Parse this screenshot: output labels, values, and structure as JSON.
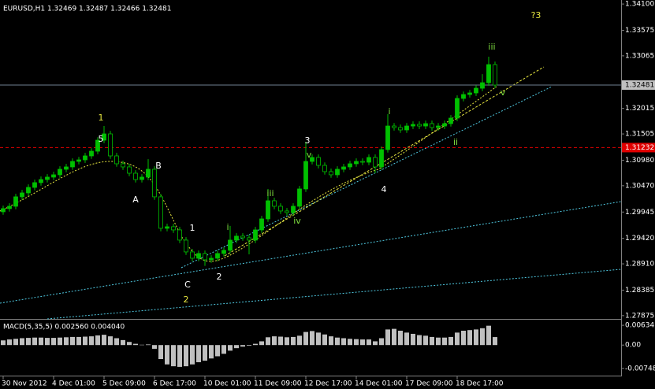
{
  "chart_data": [
    {
      "type": "candlestick",
      "title": "EURUSD,H1  1.32469 1.32487 1.32466 1.32481",
      "categories": [
        "30 Nov 2012",
        null,
        null,
        null,
        null,
        null,
        null,
        null,
        "4 Dec 01:00",
        null,
        null,
        null,
        null,
        null,
        null,
        null,
        "5 Dec 09:00",
        null,
        null,
        null,
        null,
        null,
        null,
        null,
        "6 Dec 17:00",
        null,
        null,
        null,
        null,
        null,
        null,
        null,
        "10 Dec 01:00",
        null,
        null,
        null,
        null,
        null,
        null,
        null,
        "11 Dec 09:00",
        null,
        null,
        null,
        null,
        null,
        null,
        null,
        "12 Dec 17:00",
        null,
        null,
        null,
        null,
        null,
        null,
        null,
        "14 Dec 01:00",
        null,
        null,
        null,
        null,
        null,
        null,
        null,
        "17 Dec 09:00",
        null,
        null,
        null,
        null,
        null,
        null,
        null,
        "18 Dec 17:00",
        null,
        null,
        null,
        null,
        null,
        null
      ],
      "open": [
        1.2995,
        1.30013,
        1.3006,
        1.30249,
        1.30327,
        1.30437,
        1.30532,
        1.30594,
        1.30642,
        1.30689,
        1.30799,
        1.30846,
        1.30956,
        1.30987,
        1.31066,
        1.3116,
        1.3138,
        1.31506,
        1.31066,
        1.30909,
        1.30846,
        1.3072,
        1.30594,
        1.30642,
        1.30799,
        1.30249,
        1.2962,
        1.29651,
        1.29588,
        1.29384,
        1.29148,
        1.29022,
        1.29117,
        1.28991,
        1.29022,
        1.29117,
        1.2918,
        1.29384,
        1.29463,
        1.29431,
        1.29384,
        1.29588,
        1.29808,
        1.3017,
        1.3006,
        1.29966,
        1.29934,
        1.3006,
        1.30406,
        1.30956,
        1.31035,
        1.30877,
        1.30752,
        1.30689,
        1.30799,
        1.30846,
        1.30909,
        1.30956,
        1.3094,
        1.31035,
        1.30846,
        1.31192,
        1.31663,
        1.31632,
        1.31585,
        1.31663,
        1.31695,
        1.31663,
        1.31711,
        1.31632,
        1.31663,
        1.31711,
        1.31821,
        1.32214,
        1.32292,
        1.32324,
        1.32418,
        1.32528,
        1.3289
      ],
      "high": [
        1.30073,
        1.3012,
        1.30309,
        1.30387,
        1.30497,
        1.30592,
        1.30654,
        1.30702,
        1.30749,
        1.30859,
        1.30906,
        1.31016,
        1.31047,
        1.31126,
        1.3122,
        1.3144,
        1.31663,
        1.31566,
        1.31126,
        1.30969,
        1.30906,
        1.3078,
        1.30702,
        1.31,
        1.30859,
        1.30309,
        1.29711,
        1.29711,
        1.29648,
        1.29444,
        1.29208,
        1.29177,
        1.29177,
        1.29082,
        1.29177,
        1.2924,
        1.29667,
        1.29523,
        1.29523,
        1.29491,
        1.29648,
        1.29868,
        1.30406,
        1.3023,
        1.3012,
        1.30026,
        1.3012,
        1.30466,
        1.31349,
        1.31095,
        1.31095,
        1.30937,
        1.30812,
        1.30859,
        1.30906,
        1.30969,
        1.31016,
        1.31016,
        1.31095,
        1.31095,
        1.31252,
        1.319,
        1.31723,
        1.31692,
        1.31723,
        1.31755,
        1.31755,
        1.31771,
        1.31771,
        1.31723,
        1.31771,
        1.31881,
        1.32274,
        1.32352,
        1.32384,
        1.32478,
        1.327,
        1.33047,
        1.3295
      ],
      "low": [
        1.2989,
        1.29953,
        1.3,
        1.30189,
        1.30267,
        1.30377,
        1.30472,
        1.30534,
        1.30582,
        1.30629,
        1.30739,
        1.30786,
        1.30896,
        1.30927,
        1.31006,
        1.311,
        1.3132,
        1.31006,
        1.30849,
        1.30786,
        1.3066,
        1.30534,
        1.30534,
        1.30582,
        1.30189,
        1.2956,
        1.2956,
        1.29528,
        1.29324,
        1.29088,
        1.28962,
        1.28962,
        1.2887,
        1.28931,
        1.28962,
        1.29057,
        1.2912,
        1.29324,
        1.29371,
        1.291,
        1.29324,
        1.29528,
        1.29748,
        1.3,
        1.29906,
        1.29874,
        1.29874,
        1.3,
        1.30346,
        1.30896,
        1.30817,
        1.30692,
        1.30629,
        1.30629,
        1.30739,
        1.30786,
        1.30849,
        1.3088,
        1.3088,
        1.3072,
        1.30786,
        1.31132,
        1.31572,
        1.31525,
        1.31525,
        1.31603,
        1.31603,
        1.31603,
        1.31572,
        1.31572,
        1.31603,
        1.31651,
        1.31761,
        1.32154,
        1.32232,
        1.32264,
        1.32358,
        1.32468,
        1.32421
      ],
      "close": [
        1.30013,
        1.3006,
        1.30249,
        1.30327,
        1.30437,
        1.30532,
        1.30594,
        1.30642,
        1.30689,
        1.30799,
        1.30846,
        1.30956,
        1.30987,
        1.31066,
        1.3116,
        1.3138,
        1.31506,
        1.31066,
        1.30909,
        1.30846,
        1.3072,
        1.30594,
        1.30642,
        1.30799,
        1.30249,
        1.2962,
        1.29651,
        1.29588,
        1.29384,
        1.29148,
        1.29022,
        1.29117,
        1.28991,
        1.29022,
        1.29117,
        1.2918,
        1.29384,
        1.29463,
        1.29431,
        1.29384,
        1.29588,
        1.29808,
        1.3017,
        1.3006,
        1.29966,
        1.29934,
        1.3006,
        1.30406,
        1.30956,
        1.31035,
        1.30877,
        1.30752,
        1.30689,
        1.30799,
        1.30846,
        1.30909,
        1.30956,
        1.3094,
        1.31035,
        1.30846,
        1.31192,
        1.31663,
        1.31632,
        1.31585,
        1.31663,
        1.31695,
        1.31663,
        1.31711,
        1.31632,
        1.31663,
        1.31711,
        1.31821,
        1.32214,
        1.32292,
        1.32324,
        1.32418,
        1.32528,
        1.3289,
        1.32481
      ],
      "up_color": "#00c000",
      "down_color": "#000000",
      "ylim": [
        1.2781,
        1.3418
      ],
      "yticks": [
        {
          "value": 1.341,
          "label": "1.34100"
        },
        1.33575,
        1.33065,
        1.32015,
        1.31505,
        {
          "value": 1.3098,
          "label": "1.30980"
        },
        {
          "value": 1.3047,
          "label": "1.30470"
        },
        1.29945,
        {
          "value": 1.2942,
          "label": "1.29420"
        },
        {
          "value": 1.2891,
          "label": "1.28910"
        },
        1.28385,
        1.27875
      ],
      "price_line": 1.32481,
      "level_line": 1.31232,
      "annotations": [
        "1",
        "5",
        "A",
        "B",
        "1",
        "C",
        "2",
        "2",
        "3",
        "4",
        "iii",
        "?3",
        "i",
        "iii",
        "iv",
        "v",
        "i",
        "ii",
        "v"
      ],
      "grid": false
    },
    {
      "type": "bar",
      "title": "MACD(5,35,5) 0.002560 0.004040",
      "values": [
        0.0015,
        0.0018,
        0.002,
        0.0022,
        0.0023,
        0.0024,
        0.0024,
        0.0023,
        0.0023,
        0.0024,
        0.0025,
        0.0026,
        0.0026,
        0.0027,
        0.0028,
        0.0031,
        0.0033,
        0.0028,
        0.0022,
        0.0016,
        0.001,
        0.0004,
        0.0001,
        0.0002,
        -0.0012,
        -0.0045,
        -0.0062,
        -0.0068,
        -0.007,
        -0.0068,
        -0.0062,
        -0.0055,
        -0.005,
        -0.0043,
        -0.0036,
        -0.0028,
        -0.0018,
        -0.001,
        -0.0005,
        -0.0002,
        0.0004,
        0.0012,
        0.0025,
        0.0028,
        0.0027,
        0.0025,
        0.0026,
        0.003,
        0.0042,
        0.0045,
        0.004,
        0.0034,
        0.0028,
        0.0024,
        0.0022,
        0.002,
        0.0019,
        0.0018,
        0.0018,
        0.0012,
        0.0022,
        0.005,
        0.0052,
        0.0046,
        0.004,
        0.0036,
        0.0032,
        0.003,
        0.0026,
        0.0024,
        0.0024,
        0.0026,
        0.004,
        0.0046,
        0.0048,
        0.005,
        0.0054,
        0.0062,
        0.00256
      ],
      "color": "#c0c0c0",
      "ylim": [
        -0.0098,
        0.00788
      ],
      "yticks": [
        0.006341,
        {
          "value": 0,
          "label": "0.00"
        },
        {
          "value": -0.00748,
          "label": "-0.00748"
        }
      ]
    }
  ]
}
